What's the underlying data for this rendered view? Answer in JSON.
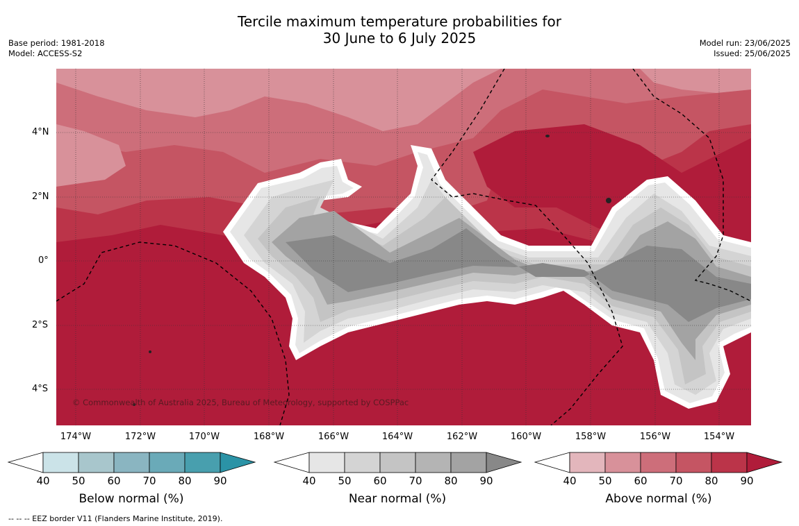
{
  "title_line1": "Tercile maximum temperature probabilities for",
  "title_line2": "30 June to 6 July 2025",
  "meta": {
    "base_period": "Base period: 1981-2018",
    "model": "Model: ACCESS-S2",
    "model_run": "Model run: 23/06/2025",
    "issued": "Issued: 25/06/2025"
  },
  "lat_labels": [
    "4°N",
    "2°N",
    "0°",
    "2°S",
    "4°S"
  ],
  "lon_labels": [
    "174°W",
    "172°W",
    "170°W",
    "168°W",
    "166°W",
    "164°W",
    "162°W",
    "160°W",
    "158°W",
    "156°W",
    "154°W"
  ],
  "copyright": "© Commonwealth of Australia 2025, Bureau of Meteorology, supported by COSPPac",
  "eez_note": "--  --  -- EEZ border V11 (Flanders Marine Institute, 2019).",
  "colorbars": [
    {
      "title": "Below normal (%)",
      "ticks": [
        "40",
        "50",
        "60",
        "70",
        "80",
        "90"
      ],
      "colors": [
        "#cbe3e8",
        "#a8c6cc",
        "#8ab5c1",
        "#6aaab8",
        "#489fae",
        "#2b93a6"
      ]
    },
    {
      "title": "Near normal (%)",
      "ticks": [
        "40",
        "50",
        "60",
        "70",
        "80",
        "90"
      ],
      "colors": [
        "#e6e6e6",
        "#d4d4d4",
        "#c4c4c4",
        "#b4b4b4",
        "#a3a3a3",
        "#888888"
      ]
    },
    {
      "title": "Above normal (%)",
      "ticks": [
        "40",
        "50",
        "60",
        "70",
        "80",
        "90"
      ],
      "colors": [
        "#e3b6bc",
        "#d8919a",
        "#cd6e7a",
        "#c55563",
        "#bb3449",
        "#b01c3a"
      ]
    }
  ]
}
